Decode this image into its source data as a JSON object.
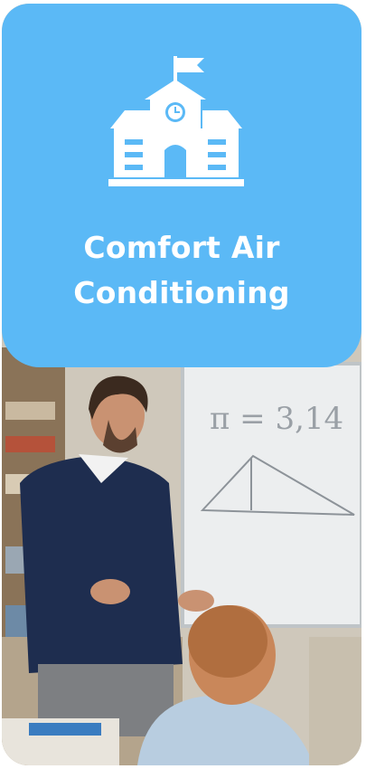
{
  "card": {
    "title_lines": [
      "Comfort Air",
      "Conditioning"
    ]
  }
}
